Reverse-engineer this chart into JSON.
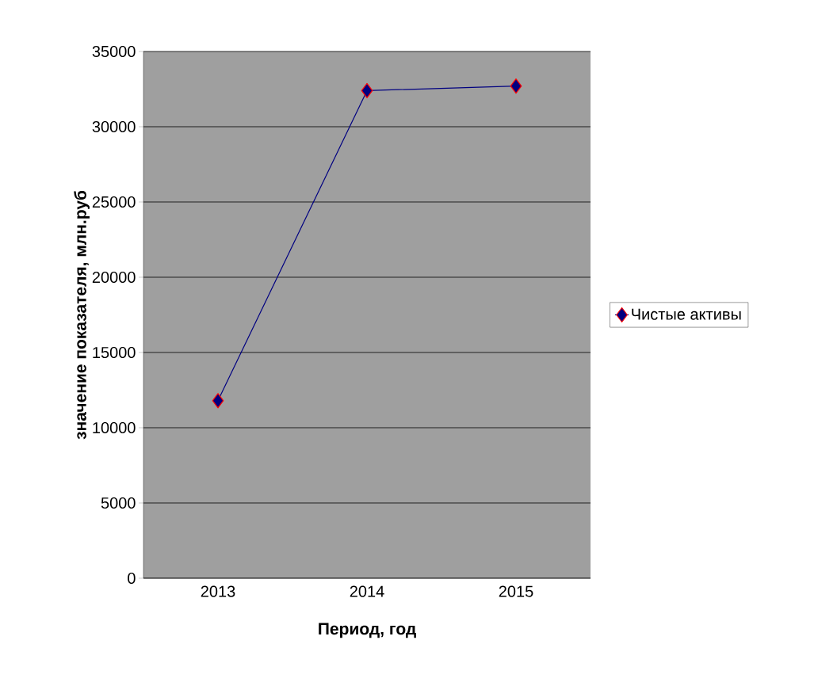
{
  "chart_data": {
    "type": "line",
    "xlabel": "Период, год",
    "ylabel": "значение показателя, млн.руб",
    "categories": [
      "2013",
      "2014",
      "2015"
    ],
    "series": [
      {
        "name": "Чистые активы",
        "color": "#000080",
        "values": [
          11800,
          32400,
          32700
        ]
      }
    ],
    "ylim": [
      0,
      35000
    ],
    "yticks": [
      0,
      5000,
      10000,
      15000,
      20000,
      25000,
      30000,
      35000
    ],
    "grid": "y",
    "legend": "right",
    "marker": "diamond",
    "line_style": "solid"
  }
}
